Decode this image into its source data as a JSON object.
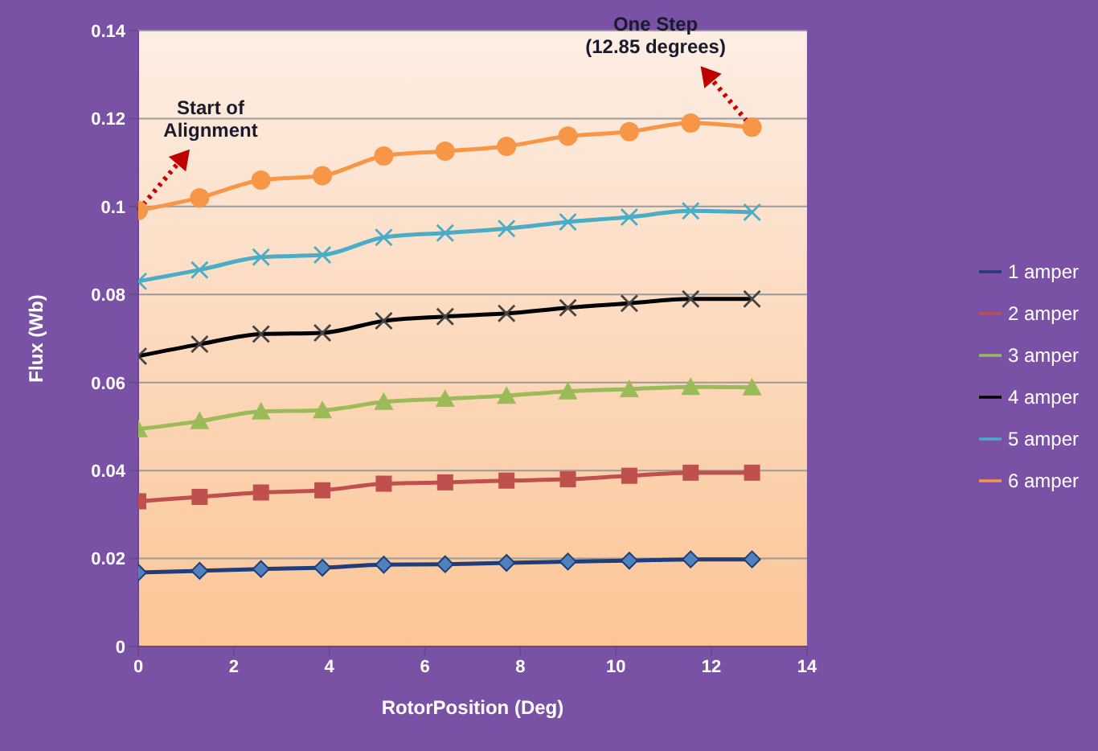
{
  "chart_data": {
    "type": "line",
    "xlabel": "RotorPosition (Deg)",
    "ylabel": "Flux (Wb)",
    "x": [
      0,
      1.285,
      2.57,
      3.855,
      5.14,
      6.425,
      7.71,
      8.995,
      10.28,
      11.565,
      12.85
    ],
    "series": [
      {
        "name": "1 amper",
        "color": "#1f3d7a",
        "marker": "diamond",
        "values": [
          0.0168,
          0.0172,
          0.0176,
          0.0179,
          0.0186,
          0.0187,
          0.019,
          0.0193,
          0.0195,
          0.0198,
          0.0198
        ]
      },
      {
        "name": "2 amper",
        "color": "#c0504d",
        "marker": "square",
        "values": [
          0.033,
          0.034,
          0.035,
          0.0355,
          0.037,
          0.0373,
          0.0377,
          0.038,
          0.0388,
          0.0395,
          0.0395
        ]
      },
      {
        "name": "3 amper",
        "color": "#9bbb59",
        "marker": "triangle",
        "values": [
          0.0494,
          0.0512,
          0.0534,
          0.0537,
          0.0556,
          0.0563,
          0.057,
          0.058,
          0.0585,
          0.059,
          0.0589
        ]
      },
      {
        "name": "4 amper",
        "color": "#000000",
        "marker": "cross",
        "values": [
          0.066,
          0.0687,
          0.071,
          0.0713,
          0.074,
          0.075,
          0.0757,
          0.077,
          0.078,
          0.079,
          0.079
        ]
      },
      {
        "name": "5 amper",
        "color": "#4bacc6",
        "marker": "cross",
        "values": [
          0.083,
          0.0856,
          0.0885,
          0.089,
          0.093,
          0.094,
          0.095,
          0.0965,
          0.0976,
          0.099,
          0.0987
        ]
      },
      {
        "name": "6 amper",
        "color": "#f79646",
        "marker": "circle",
        "values": [
          0.0991,
          0.102,
          0.106,
          0.107,
          0.1115,
          0.1126,
          0.1137,
          0.116,
          0.117,
          0.119,
          0.118
        ]
      }
    ],
    "xlim": [
      0,
      14
    ],
    "xticks": [
      0,
      2,
      4,
      6,
      8,
      10,
      12,
      14
    ],
    "ylim": [
      0,
      0.14
    ],
    "yticks": [
      0,
      0.02,
      0.04,
      0.06,
      0.08,
      0.1,
      0.12,
      0.14
    ],
    "grid": "y",
    "legend": "right",
    "line_style": "solid",
    "annotations": [
      {
        "text": "Start of Alignment",
        "x": 0,
        "y": 0.0991
      },
      {
        "text": "One Step (12.85 degrees)",
        "x": 12.85,
        "y": 0.118
      }
    ]
  }
}
